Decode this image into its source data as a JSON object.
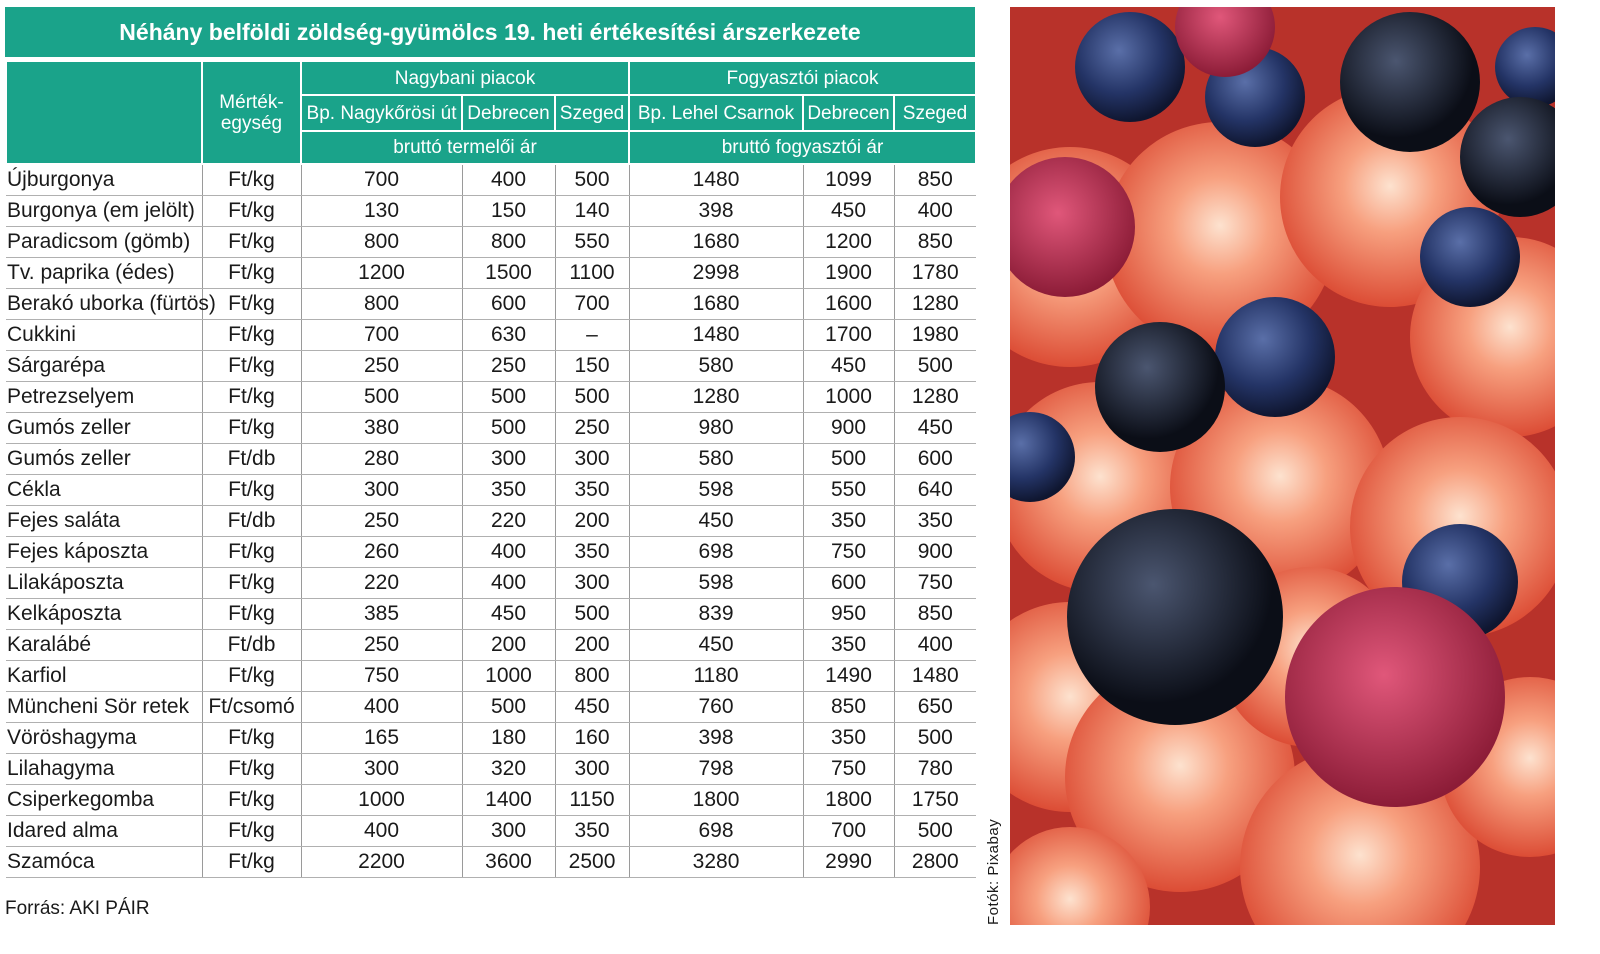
{
  "title": "Néhány belföldi zöldség-gyümölcs 19. heti értékesítési árszerkezete",
  "header": {
    "unit_label": "Mérték-egység",
    "group_wholesale": "Nagybani piacok",
    "group_consumer": "Fogyasztói piacok",
    "markets": [
      "Bp. Nagykőrösi út",
      "Debrecen",
      "Szeged",
      "Bp. Lehel Csarnok",
      "Debrecen",
      "Szeged"
    ],
    "price_wholesale": "bruttó termelői ár",
    "price_consumer": "bruttó fogyasztói ár"
  },
  "rows": [
    {
      "name": "Újburgonya",
      "unit": "Ft/kg",
      "values": [
        "700",
        "400",
        "500",
        "1480",
        "1099",
        "850"
      ]
    },
    {
      "name": "Burgonya (em jelölt)",
      "unit": "Ft/kg",
      "values": [
        "130",
        "150",
        "140",
        "398",
        "450",
        "400"
      ]
    },
    {
      "name": "Paradicsom (gömb)",
      "unit": "Ft/kg",
      "values": [
        "800",
        "800",
        "550",
        "1680",
        "1200",
        "850"
      ]
    },
    {
      "name": "Tv. paprika (édes)",
      "unit": "Ft/kg",
      "values": [
        "1200",
        "1500",
        "1100",
        "2998",
        "1900",
        "1780"
      ]
    },
    {
      "name": "Berakó uborka (fürtös)",
      "unit": "Ft/kg",
      "values": [
        "800",
        "600",
        "700",
        "1680",
        "1600",
        "1280"
      ]
    },
    {
      "name": "Cukkini",
      "unit": "Ft/kg",
      "values": [
        "700",
        "630",
        "–",
        "1480",
        "1700",
        "1980"
      ]
    },
    {
      "name": "Sárgarépa",
      "unit": "Ft/kg",
      "values": [
        "250",
        "250",
        "150",
        "580",
        "450",
        "500"
      ]
    },
    {
      "name": "Petrezselyem",
      "unit": "Ft/kg",
      "values": [
        "500",
        "500",
        "500",
        "1280",
        "1000",
        "1280"
      ]
    },
    {
      "name": "Gumós zeller",
      "unit": "Ft/kg",
      "values": [
        "380",
        "500",
        "250",
        "980",
        "900",
        "450"
      ]
    },
    {
      "name": "Gumós zeller",
      "unit": "Ft/db",
      "values": [
        "280",
        "300",
        "300",
        "580",
        "500",
        "600"
      ]
    },
    {
      "name": "Cékla",
      "unit": "Ft/kg",
      "values": [
        "300",
        "350",
        "350",
        "598",
        "550",
        "640"
      ]
    },
    {
      "name": "Fejes saláta",
      "unit": "Ft/db",
      "values": [
        "250",
        "220",
        "200",
        "450",
        "350",
        "350"
      ]
    },
    {
      "name": "Fejes káposzta",
      "unit": "Ft/kg",
      "values": [
        "260",
        "400",
        "350",
        "698",
        "750",
        "900"
      ]
    },
    {
      "name": "Lilakáposzta",
      "unit": "Ft/kg",
      "values": [
        "220",
        "400",
        "300",
        "598",
        "600",
        "750"
      ]
    },
    {
      "name": "Kelkáposzta",
      "unit": "Ft/kg",
      "values": [
        "385",
        "450",
        "500",
        "839",
        "950",
        "850"
      ]
    },
    {
      "name": "Karalábé",
      "unit": "Ft/db",
      "values": [
        "250",
        "200",
        "200",
        "450",
        "350",
        "400"
      ]
    },
    {
      "name": "Karfiol",
      "unit": "Ft/kg",
      "values": [
        "750",
        "1000",
        "800",
        "1180",
        "1490",
        "1480"
      ]
    },
    {
      "name": "Müncheni Sör retek",
      "unit": "Ft/csomó",
      "values": [
        "400",
        "500",
        "450",
        "760",
        "850",
        "650"
      ]
    },
    {
      "name": "Vöröshagyma",
      "unit": "Ft/kg",
      "values": [
        "165",
        "180",
        "160",
        "398",
        "350",
        "500"
      ]
    },
    {
      "name": "Lilahagyma",
      "unit": "Ft/kg",
      "values": [
        "300",
        "320",
        "300",
        "798",
        "750",
        "780"
      ]
    },
    {
      "name": "Csiperkegomba",
      "unit": "Ft/kg",
      "values": [
        "1000",
        "1400",
        "1150",
        "1800",
        "1800",
        "1750"
      ]
    },
    {
      "name": "Idared alma",
      "unit": "Ft/kg",
      "values": [
        "400",
        "300",
        "350",
        "698",
        "700",
        "500"
      ]
    },
    {
      "name": "Szamóca",
      "unit": "Ft/kg",
      "values": [
        "2200",
        "3600",
        "2500",
        "3280",
        "2990",
        "2800"
      ]
    }
  ],
  "source": "Forrás: AKI PÁIR",
  "photo_credit": "Fotók: Pixabay",
  "colors": {
    "header_bg": "#1aa38a",
    "header_text": "#ffffff"
  }
}
